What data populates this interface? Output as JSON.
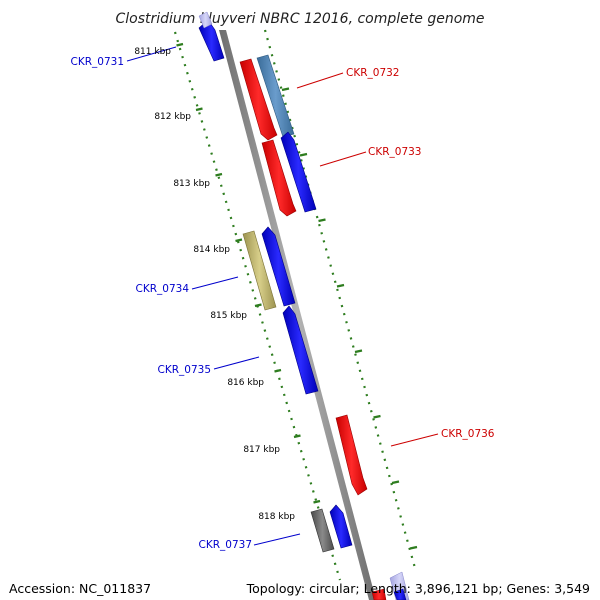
{
  "title": "Clostridium kluyveri NBRC 12016, complete genome",
  "footer": {
    "accession": "Accession: NC_011837",
    "summary": "Topology: circular; Length: 3,896,121 bp; Genes: 3,549"
  },
  "colors": {
    "backbone": "#8a8a8a",
    "ticks": "#2e7d1f",
    "forward_label": "#cc0000",
    "reverse_label": "#0000cc",
    "red": "#ff0000",
    "blue": "#0000ff",
    "steelblue": "#4f86b8",
    "khaki": "#c2b870",
    "gray": "#666666",
    "lavender": "#b8b8ee"
  },
  "ticks": [
    {
      "label": "811 kbp"
    },
    {
      "label": "812 kbp"
    },
    {
      "label": "813 kbp"
    },
    {
      "label": "814 kbp"
    },
    {
      "label": "815 kbp"
    },
    {
      "label": "816 kbp"
    },
    {
      "label": "817 kbp"
    },
    {
      "label": "818 kbp"
    }
  ],
  "gene_labels": [
    {
      "name": "CKR_0731",
      "strand": "reverse"
    },
    {
      "name": "CKR_0732",
      "strand": "forward"
    },
    {
      "name": "CKR_0733",
      "strand": "forward"
    },
    {
      "name": "CKR_0734",
      "strand": "reverse"
    },
    {
      "name": "CKR_0735",
      "strand": "reverse"
    },
    {
      "name": "CKR_0736",
      "strand": "forward"
    },
    {
      "name": "CKR_0737",
      "strand": "reverse"
    }
  ]
}
